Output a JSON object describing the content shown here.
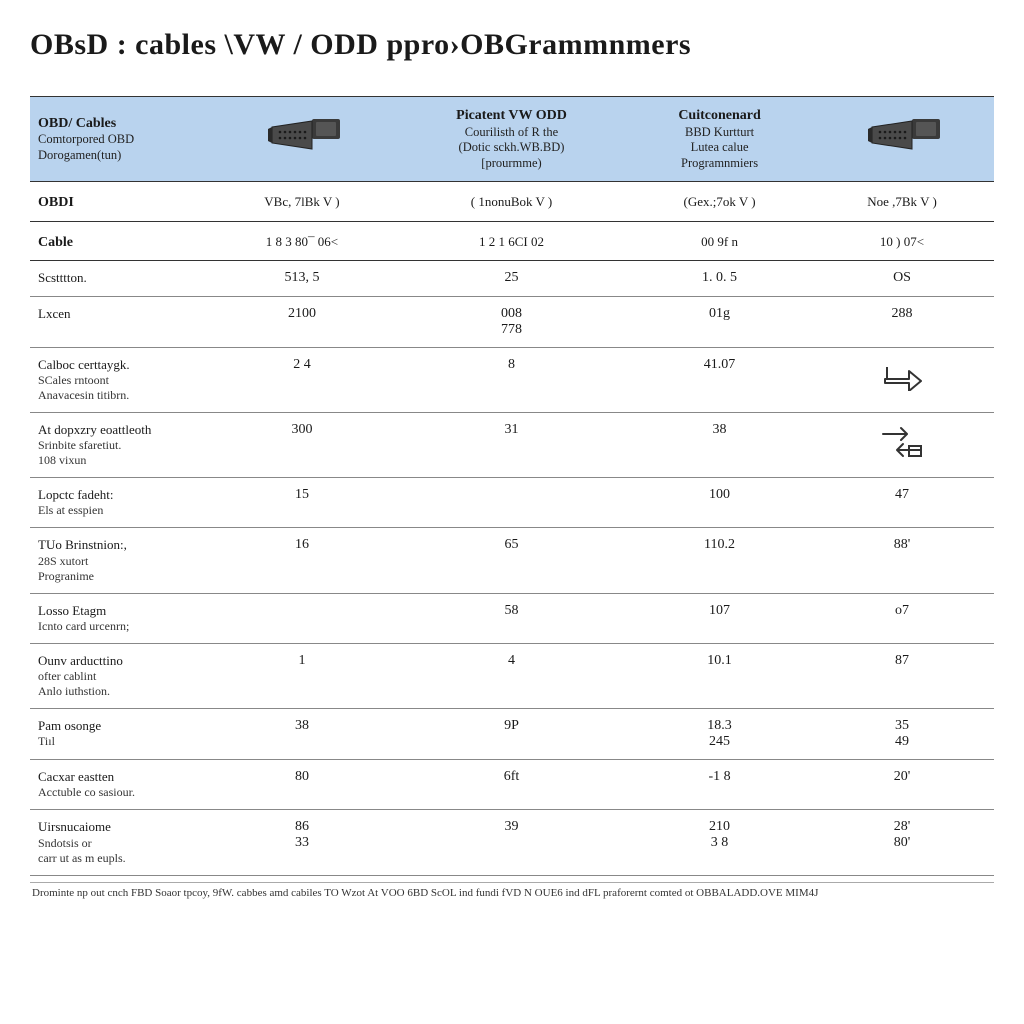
{
  "title": {
    "a": "OBsD",
    "b": ": cables",
    "c": "\\VW / ODD ppro›OBGrammnmers"
  },
  "header": {
    "col0": {
      "l1": "OBD/ Cables",
      "l2": "Comtorpored OBD",
      "l3": "Dorogamen(tun)"
    },
    "col1": {
      "l1": "Picatent VW ODD",
      "l2": "Courilisth of R the",
      "l3": "(Dotic sckh.WB.BD)",
      "l4": "[prourmme)"
    },
    "col2": {
      "l1": "Cuitconenard",
      "l2": "BBD Kurtturt",
      "l3": "Lutea calue",
      "l4": "Programnmiers"
    }
  },
  "subheader": {
    "c0": "OBDI",
    "c1": "VBc, 7lBk V )",
    "c2": "( 1nonuBok V )",
    "c3": "(Gex.;7ok V )",
    "c4": "Noe ,7Bk V )"
  },
  "rows": [
    {
      "label": "Cable",
      "sub": "",
      "v": [
        "1 8 3 80¯ 06<",
        "1 2 1 6CI 02",
        "00 9f n",
        "10 ) 07<"
      ],
      "strong": true
    },
    {
      "label": "Scstttton.",
      "sub": "",
      "v": [
        "513, 5",
        "25",
        "1. 0. 5",
        "OS"
      ]
    },
    {
      "label": "Lxcen",
      "sub": "",
      "v": [
        "2100",
        "008\n778",
        "01g",
        "288"
      ]
    },
    {
      "label": "Calboc certtaygk.",
      "sub": "SCales rntoont\nAnavacesin titibrn.",
      "v": [
        "2 4",
        "8",
        "41.07",
        "icon-arrow"
      ]
    },
    {
      "label": "At dopxzry eoattleoth",
      "sub": "Srinbite sfaretiut.\n108 vixun",
      "v": [
        "300",
        "31",
        "38",
        "icon-swap"
      ]
    },
    {
      "label": "Lopctc fadeht:",
      "sub": "Els at esspien",
      "v": [
        "15",
        "",
        "100",
        "47"
      ]
    },
    {
      "label": "TUo Brinstnion:,",
      "sub": "28S xutort\nProgranime",
      "v": [
        "16",
        "65",
        "110.2",
        "88'"
      ]
    },
    {
      "label": "Losso Etagm",
      "sub": "Icnto card urcenrn;",
      "v": [
        "",
        "58",
        "107",
        "o7"
      ]
    },
    {
      "label": "Ounv arducttino",
      "sub": "ofter cablint\nAnlo iuthstion.",
      "v": [
        "1",
        "4",
        "10.1",
        "87"
      ]
    },
    {
      "label": "Pam osonge",
      "sub": "Tiıl",
      "v": [
        "38",
        "9P",
        "18.3\n245",
        "35\n49"
      ]
    },
    {
      "label": "Cacxar eastten",
      "sub": "Acctuble co sasiour.",
      "v": [
        "80",
        "6ft",
        "-1 8",
        "20'"
      ]
    },
    {
      "label": "Uirsnucaiome",
      "sub": "Sndotsis or\ncarr ut as m eupls.",
      "v": [
        "86\n33",
        "39",
        "210\n3 8",
        "28'\n80'"
      ]
    }
  ],
  "footnote": "Drominte np out cnch FBD Soaor  tpcoy, 9fW. cabbes amd cabiles TO Wzot At VOO 6BD ScOL ind fundi  fVD N OUE6 ind dFL praforernt comted ot OBBALADD.OVE MIM4J",
  "colors": {
    "headerBg": "#b9d3ee",
    "border": "#888888",
    "connectorBody": "#4a4a4a",
    "connectorDark": "#2a2a2a"
  }
}
